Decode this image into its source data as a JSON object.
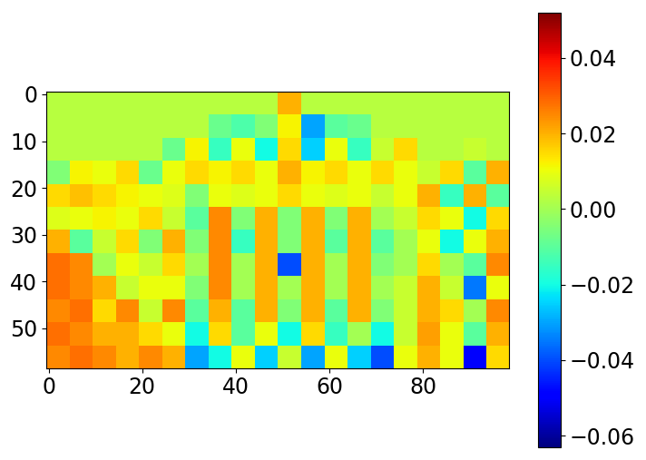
{
  "chart_data": {
    "type": "heatmap",
    "xlim": [
      -0.5,
      98.5
    ],
    "ylim": [
      58.5,
      -0.5
    ],
    "xticks": [
      0,
      20,
      40,
      60,
      80
    ],
    "yticks": [
      0,
      10,
      20,
      30,
      40,
      50
    ],
    "color_range": [
      -0.063,
      0.052
    ],
    "color_ticks": [
      {
        "value": -0.06,
        "label": "−0.06"
      },
      {
        "value": -0.04,
        "label": "−0.04"
      },
      {
        "value": -0.02,
        "label": "−0.02"
      },
      {
        "value": 0.0,
        "label": "0.00"
      },
      {
        "value": 0.02,
        "label": "0.02"
      },
      {
        "value": 0.04,
        "label": "0.04"
      }
    ],
    "cells": [
      [
        0.003,
        0.003,
        0.003,
        0.003,
        0.003,
        0.003,
        0.003,
        0.003,
        0.003,
        0.003,
        0.02,
        0.003,
        0.003,
        0.003,
        0.003,
        0.003,
        0.003,
        0.003,
        0.003,
        0.003
      ],
      [
        0.003,
        0.003,
        0.003,
        0.003,
        0.003,
        0.003,
        0.003,
        -0.008,
        -0.012,
        -0.005,
        0.012,
        -0.03,
        -0.01,
        -0.008,
        0.003,
        0.003,
        0.003,
        0.003,
        0.003,
        0.003
      ],
      [
        0.003,
        0.003,
        0.003,
        0.003,
        0.003,
        -0.008,
        0.012,
        -0.015,
        0.01,
        -0.02,
        0.015,
        -0.025,
        0.01,
        -0.015,
        0.005,
        0.015,
        0.003,
        0.003,
        0.005,
        0.003
      ],
      [
        -0.005,
        0.012,
        0.01,
        0.015,
        -0.008,
        0.01,
        0.015,
        0.012,
        0.015,
        0.01,
        0.02,
        0.012,
        0.015,
        0.01,
        0.015,
        0.01,
        0.005,
        0.015,
        -0.01,
        0.02
      ],
      [
        0.015,
        0.018,
        0.015,
        0.012,
        0.01,
        0.008,
        -0.005,
        0.01,
        0.008,
        0.01,
        0.015,
        0.01,
        0.008,
        0.01,
        0.005,
        0.01,
        0.02,
        -0.015,
        0.02,
        -0.01
      ],
      [
        0.008,
        0.01,
        0.012,
        0.01,
        0.015,
        0.005,
        -0.01,
        0.025,
        -0.005,
        0.02,
        -0.005,
        0.02,
        -0.005,
        0.02,
        0.0,
        0.005,
        0.015,
        0.01,
        -0.02,
        0.015
      ],
      [
        0.02,
        -0.01,
        0.005,
        0.015,
        -0.005,
        0.02,
        -0.005,
        0.025,
        -0.015,
        0.02,
        -0.005,
        0.02,
        -0.01,
        0.02,
        -0.01,
        0.0,
        0.01,
        -0.02,
        0.01,
        0.02
      ],
      [
        0.028,
        0.025,
        0.0,
        0.01,
        0.005,
        0.015,
        0.0,
        0.025,
        0.0,
        0.02,
        -0.04,
        0.02,
        0.0,
        0.02,
        -0.005,
        0.0,
        0.015,
        0.0,
        -0.01,
        0.025
      ],
      [
        0.028,
        0.025,
        0.02,
        0.005,
        0.01,
        0.01,
        -0.005,
        0.025,
        0.0,
        0.02,
        0.0,
        0.02,
        0.0,
        0.02,
        0.0,
        0.005,
        0.02,
        0.005,
        -0.035,
        0.01
      ],
      [
        0.025,
        0.028,
        0.015,
        0.025,
        0.005,
        0.025,
        -0.01,
        0.02,
        -0.01,
        0.02,
        -0.005,
        0.02,
        -0.01,
        0.02,
        -0.005,
        0.005,
        0.02,
        0.015,
        0.0,
        0.025
      ],
      [
        0.028,
        0.025,
        0.02,
        0.02,
        0.015,
        0.01,
        -0.02,
        0.015,
        -0.01,
        0.01,
        -0.02,
        0.015,
        -0.015,
        0.0,
        -0.02,
        0.005,
        0.022,
        0.01,
        -0.01,
        0.02
      ],
      [
        0.025,
        0.028,
        0.025,
        0.02,
        0.025,
        0.02,
        -0.03,
        -0.02,
        0.01,
        -0.025,
        0.005,
        -0.03,
        0.01,
        -0.025,
        -0.04,
        0.01,
        0.02,
        0.01,
        -0.05,
        0.015
      ]
    ]
  }
}
